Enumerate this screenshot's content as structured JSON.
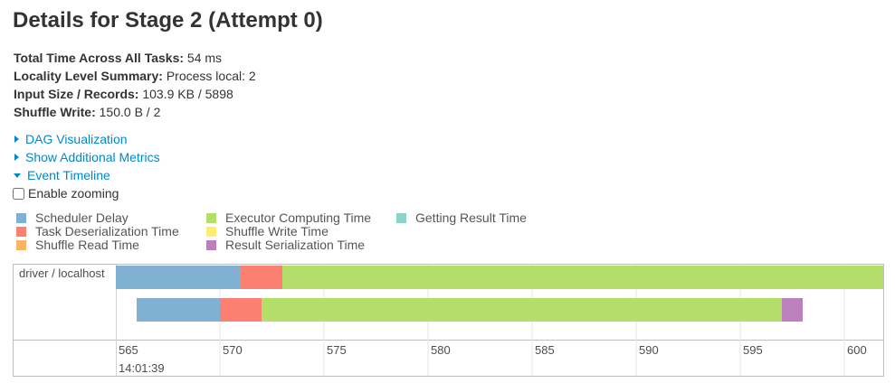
{
  "page": {
    "title": "Details for Stage 2 (Attempt 0)"
  },
  "summary": [
    {
      "key": "Total Time Across All Tasks:",
      "value": " 54 ms"
    },
    {
      "key": "Locality Level Summary:",
      "value": " Process local: 2"
    },
    {
      "key": "Input Size / Records:",
      "value": " 103.9 KB / 5898"
    },
    {
      "key": "Shuffle Write:",
      "value": " 150.0 B / 2"
    }
  ],
  "expanders": [
    {
      "label": "DAG Visualization",
      "expanded": false
    },
    {
      "label": "Show Additional Metrics",
      "expanded": false
    },
    {
      "label": "Event Timeline",
      "expanded": true
    }
  ],
  "zoom": {
    "label": "Enable zooming",
    "checked": false
  },
  "legend": [
    {
      "label": "Scheduler Delay",
      "color": "#80b1d3"
    },
    {
      "label": "Task Deserialization Time",
      "color": "#fb8072"
    },
    {
      "label": "Shuffle Read Time",
      "color": "#fdb462"
    },
    {
      "label": "Executor Computing Time",
      "color": "#b3de69"
    },
    {
      "label": "Shuffle Write Time",
      "color": "#ffed6f"
    },
    {
      "label": "Result Serialization Time",
      "color": "#bc80bd"
    },
    {
      "label": "Getting Result Time",
      "color": "#8dd3c7"
    }
  ],
  "timeline": {
    "group_label": "driver / localhost",
    "axis": {
      "ticks": [
        565,
        570,
        575,
        580,
        585,
        590,
        595,
        600
      ],
      "minor_label": "14:01:39",
      "domain_ms": [
        565,
        602
      ]
    },
    "tasks": [
      {
        "segments": [
          {
            "phase": "Scheduler Delay",
            "start": 565.0,
            "end": 571.0,
            "color": "#80b1d3"
          },
          {
            "phase": "Task Deserialization Time",
            "start": 571.0,
            "end": 573.0,
            "color": "#fb8072"
          },
          {
            "phase": "Executor Computing Time",
            "start": 573.0,
            "end": 602.0,
            "color": "#b3de69"
          }
        ]
      },
      {
        "segments": [
          {
            "phase": "Scheduler Delay",
            "start": 566.0,
            "end": 570.0,
            "color": "#80b1d3"
          },
          {
            "phase": "Task Deserialization Time",
            "start": 570.0,
            "end": 572.0,
            "color": "#fb8072"
          },
          {
            "phase": "Executor Computing Time",
            "start": 572.0,
            "end": 597.0,
            "color": "#b3de69"
          },
          {
            "phase": "Result Serialization Time",
            "start": 597.0,
            "end": 598.0,
            "color": "#bc80bd"
          }
        ]
      }
    ]
  }
}
